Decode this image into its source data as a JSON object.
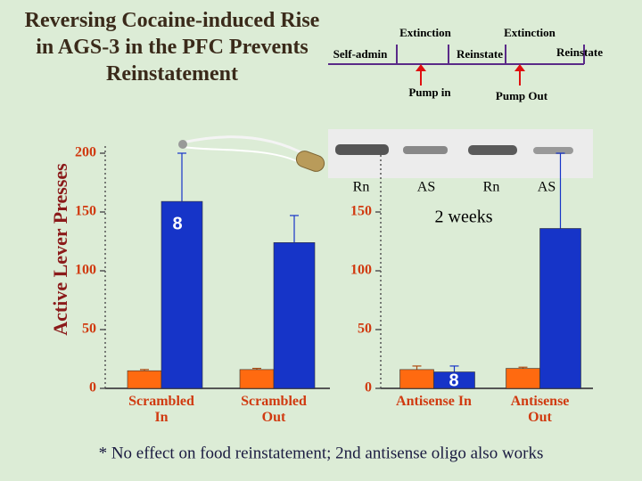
{
  "title": "Reversing Cocaine-induced Rise in AGS-3 in the PFC Prevents Reinstatement",
  "ylabel": "Active Lever Presses",
  "footnote": "* No effect on food reinstatement; 2nd antisense oligo also works",
  "timeline": {
    "phases": [
      "Self-admin",
      "Extinction",
      "Reinstate",
      "Extinction",
      "Reinstate"
    ],
    "pumps": [
      "Pump in",
      "Pump Out"
    ]
  },
  "blot_labels": [
    "Rn",
    "AS",
    "Rn",
    "AS"
  ],
  "interval": "2 weeks",
  "chart_data": [
    {
      "type": "bar",
      "categories": [
        "Scrambled In",
        "Scrambled Out"
      ],
      "series": [
        {
          "color": "#ff6a10",
          "values": [
            15,
            16
          ],
          "errors": [
            1,
            1
          ]
        },
        {
          "color": "#1634c8",
          "values": [
            159,
            124
          ],
          "errors": [
            41,
            23
          ]
        }
      ],
      "ylim": [
        0,
        200
      ],
      "yticks": [
        0,
        50,
        100,
        150,
        200
      ],
      "annotation": "8"
    },
    {
      "type": "bar",
      "categories": [
        "Antisense In",
        "Antisense Out"
      ],
      "series": [
        {
          "color": "#ff6a10",
          "values": [
            16,
            17
          ],
          "errors": [
            3,
            1
          ]
        },
        {
          "color": "#1634c8",
          "values": [
            14,
            136
          ],
          "errors": [
            5,
            64
          ]
        }
      ],
      "ylim": [
        0,
        200
      ],
      "yticks": [
        0,
        50,
        100,
        150
      ],
      "annotation": "8"
    }
  ]
}
